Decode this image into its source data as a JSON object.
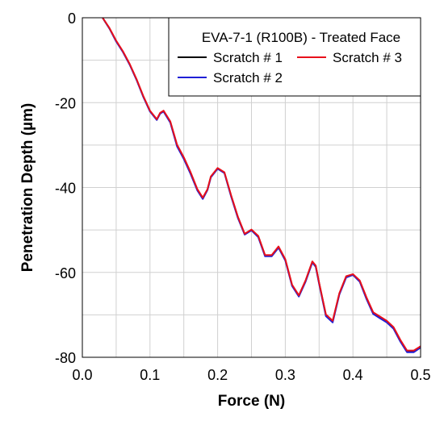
{
  "chart_data": {
    "type": "line",
    "title": "EVA-7-1 (R100B) - Treated Face",
    "xlabel": "Force (N)",
    "ylabel": "Penetration Depth (µm)",
    "xlim": [
      0,
      0.5
    ],
    "ylim": [
      -80,
      0
    ],
    "x_ticks": [
      0,
      0.1,
      0.2,
      0.3,
      0.4,
      0.5
    ],
    "x_tick_labels": [
      "0.0",
      "0.1",
      "0.2",
      "0.3",
      "0.4",
      "0.5"
    ],
    "y_ticks": [
      0,
      -20,
      -40,
      -60,
      -80
    ],
    "y_tick_labels": [
      "0",
      "-20",
      "-40",
      "-60",
      "-80"
    ],
    "grid": true,
    "legend_position": "top-right",
    "series": [
      {
        "name": "Scratch # 1",
        "color": "#000000",
        "x": [
          0.03,
          0.04,
          0.05,
          0.06,
          0.07,
          0.08,
          0.09,
          0.1,
          0.11,
          0.115,
          0.12,
          0.13,
          0.14,
          0.15,
          0.16,
          0.17,
          0.178,
          0.185,
          0.19,
          0.2,
          0.21,
          0.22,
          0.23,
          0.24,
          0.25,
          0.26,
          0.27,
          0.28,
          0.29,
          0.3,
          0.31,
          0.32,
          0.33,
          0.34,
          0.345,
          0.35,
          0.36,
          0.37,
          0.38,
          0.39,
          0.4,
          0.41,
          0.42,
          0.43,
          0.44,
          0.45,
          0.46,
          0.47,
          0.48,
          0.49,
          0.5
        ],
        "y": [
          0,
          -2.5,
          -5.5,
          -8,
          -11,
          -14.5,
          -18.5,
          -22,
          -24,
          -22.5,
          -22,
          -24.5,
          -30,
          -33,
          -36.5,
          -40.5,
          -42.5,
          -40.5,
          -37.5,
          -35.5,
          -36.5,
          -42,
          -47,
          -51,
          -50,
          -51.5,
          -56,
          -56,
          -54,
          -57,
          -63,
          -65.5,
          -62,
          -57.5,
          -58.5,
          -62.5,
          -70,
          -71.5,
          -65,
          -61,
          -60.5,
          -62,
          -66,
          -69.5,
          -70.5,
          -71.5,
          -73,
          -76,
          -78.5,
          -78.5,
          -77.5
        ]
      },
      {
        "name": "Scratch # 2",
        "color": "#1f1fd6",
        "x": [
          0.03,
          0.04,
          0.05,
          0.06,
          0.07,
          0.08,
          0.09,
          0.1,
          0.11,
          0.115,
          0.12,
          0.13,
          0.14,
          0.15,
          0.16,
          0.17,
          0.178,
          0.185,
          0.19,
          0.2,
          0.21,
          0.22,
          0.23,
          0.24,
          0.25,
          0.26,
          0.27,
          0.28,
          0.29,
          0.3,
          0.31,
          0.32,
          0.33,
          0.34,
          0.345,
          0.35,
          0.36,
          0.37,
          0.38,
          0.39,
          0.4,
          0.41,
          0.42,
          0.43,
          0.44,
          0.45,
          0.46,
          0.47,
          0.48,
          0.49,
          0.5
        ],
        "y": [
          0,
          -2.5,
          -5.6,
          -8.1,
          -11.1,
          -14.6,
          -18.6,
          -22.1,
          -24.1,
          -22.6,
          -22.1,
          -24.7,
          -30.3,
          -33.3,
          -36.8,
          -40.7,
          -42.7,
          -40.6,
          -37.6,
          -35.6,
          -36.6,
          -42.2,
          -47.2,
          -51.1,
          -50.1,
          -51.7,
          -56.2,
          -56.2,
          -54.2,
          -57.2,
          -63.2,
          -65.7,
          -62.2,
          -57.7,
          -58.7,
          -62.7,
          -70.3,
          -71.8,
          -65.2,
          -61.2,
          -60.6,
          -62.2,
          -66.3,
          -69.8,
          -70.8,
          -71.8,
          -73.3,
          -76.3,
          -78.8,
          -78.8,
          -77.7
        ]
      },
      {
        "name": "Scratch # 3",
        "color": "#e8101b",
        "x": [
          0.03,
          0.04,
          0.05,
          0.06,
          0.07,
          0.08,
          0.09,
          0.1,
          0.11,
          0.115,
          0.12,
          0.13,
          0.14,
          0.15,
          0.16,
          0.17,
          0.178,
          0.185,
          0.19,
          0.2,
          0.21,
          0.22,
          0.23,
          0.24,
          0.25,
          0.26,
          0.27,
          0.28,
          0.29,
          0.3,
          0.31,
          0.32,
          0.33,
          0.34,
          0.345,
          0.35,
          0.36,
          0.37,
          0.38,
          0.39,
          0.4,
          0.41,
          0.42,
          0.43,
          0.44,
          0.45,
          0.46,
          0.47,
          0.48,
          0.49,
          0.5
        ],
        "y": [
          0,
          -2.4,
          -5.4,
          -7.9,
          -10.9,
          -14.4,
          -18.4,
          -21.9,
          -23.9,
          -22.4,
          -21.9,
          -24.4,
          -29.9,
          -32.9,
          -36.4,
          -40.4,
          -42.4,
          -40.4,
          -37.4,
          -35.4,
          -36.4,
          -41.9,
          -46.9,
          -50.9,
          -49.9,
          -51.4,
          -55.9,
          -55.9,
          -53.9,
          -56.9,
          -62.9,
          -65.4,
          -61.9,
          -57.4,
          -58.4,
          -62.4,
          -69.9,
          -71.4,
          -64.9,
          -60.9,
          -60.4,
          -61.9,
          -65.9,
          -69.4,
          -70.4,
          -71.4,
          -72.9,
          -75.9,
          -78.4,
          -78.4,
          -77.4
        ]
      }
    ]
  }
}
